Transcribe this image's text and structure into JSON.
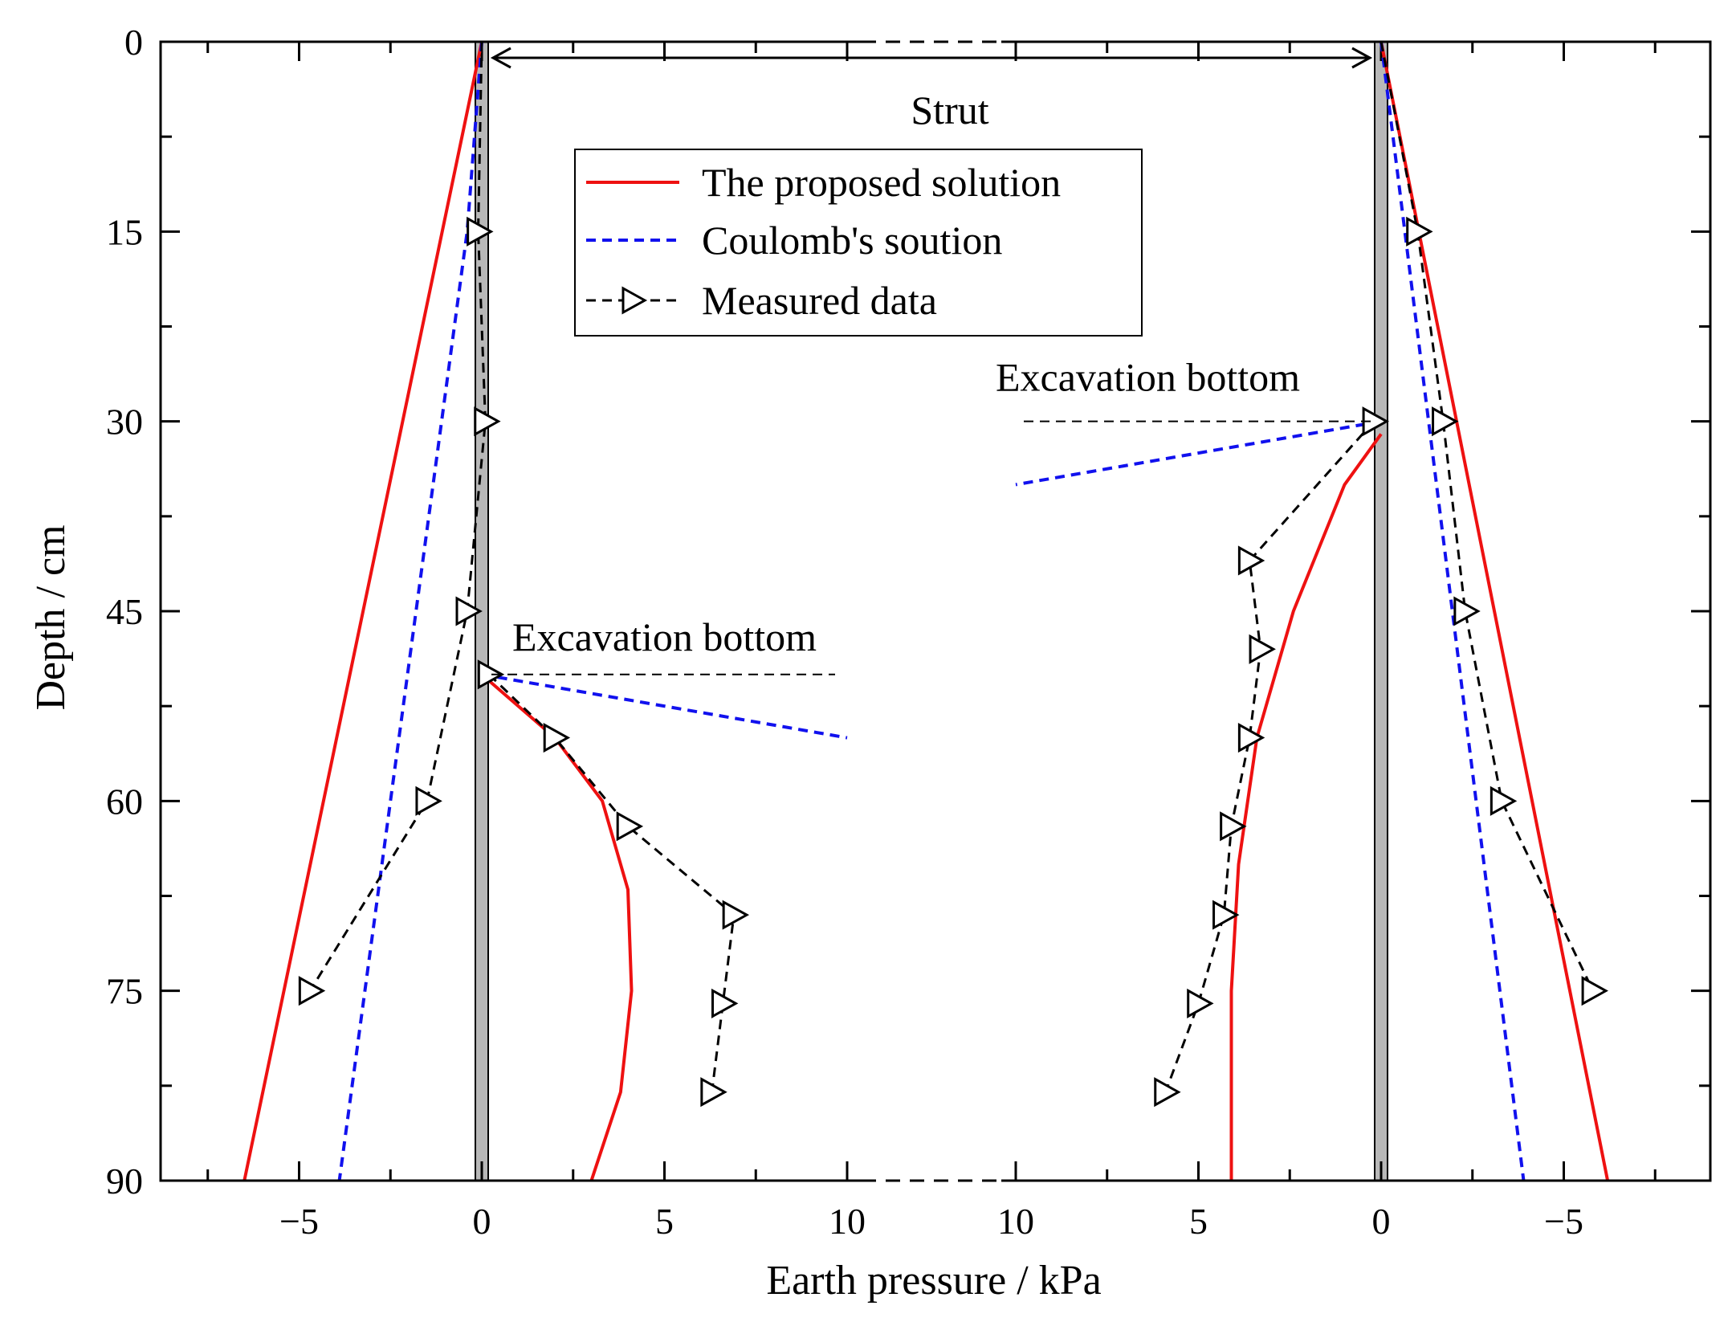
{
  "chart_data": {
    "type": "line",
    "xlabel": "Earth pressure / kPa",
    "ylabel": "Depth / cm",
    "y_ticks": [
      "0",
      "15",
      "30",
      "45",
      "60",
      "75",
      "90"
    ],
    "x_ticks_left": [
      "−5",
      "0",
      "5",
      "10"
    ],
    "x_ticks_right": [
      "10",
      "5",
      "0",
      "−5"
    ],
    "ylim": [
      0,
      90
    ],
    "annotations": {
      "strut": "Strut",
      "excavation_left": "Excavation bottom",
      "excavation_right": "Excavation bottom"
    },
    "legend": [
      {
        "name": "The proposed solution",
        "color": "#ee1111",
        "style": "solid"
      },
      {
        "name": "Coulomb's soution",
        "color": "#1111ee",
        "style": "dashed"
      },
      {
        "name": "Measured data",
        "color": "#000000",
        "style": "dashed-triangle"
      }
    ],
    "panels": [
      {
        "name": "left",
        "series": [
          {
            "name": "The proposed solution",
            "segment": "outer",
            "points": [
              [
                0,
                0
              ],
              [
                -6.5,
                90
              ]
            ]
          },
          {
            "name": "The proposed solution",
            "segment": "inner",
            "points": [
              [
                0,
                50
              ],
              [
                2.0,
                55
              ],
              [
                3.3,
                60
              ],
              [
                4.0,
                67
              ],
              [
                4.1,
                75
              ],
              [
                3.8,
                83
              ],
              [
                3.0,
                90
              ]
            ]
          },
          {
            "name": "Coulomb's soution",
            "segment": "outer",
            "points": [
              [
                0,
                0
              ],
              [
                -0.4,
                15
              ],
              [
                -3.9,
                90
              ]
            ]
          },
          {
            "name": "Coulomb's soution",
            "segment": "inner",
            "points": [
              [
                0,
                50
              ],
              [
                10,
                55
              ]
            ]
          },
          {
            "name": "Measured data",
            "segment": "outer",
            "points": [
              [
                0,
                0
              ],
              [
                -0.1,
                15
              ],
              [
                0.1,
                30
              ],
              [
                -0.4,
                45
              ],
              [
                -1.5,
                60
              ],
              [
                -4.7,
                75
              ]
            ]
          },
          {
            "name": "Measured data",
            "segment": "inner",
            "points": [
              [
                0.2,
                50
              ],
              [
                2.0,
                55
              ],
              [
                4.0,
                62
              ],
              [
                6.9,
                69
              ],
              [
                6.6,
                76
              ],
              [
                6.3,
                83
              ]
            ]
          }
        ],
        "excavation_bottom_depth": 50
      },
      {
        "name": "right",
        "series": [
          {
            "name": "The proposed solution",
            "segment": "outer",
            "points": [
              [
                0,
                0
              ],
              [
                -6.2,
                90
              ]
            ]
          },
          {
            "name": "The proposed solution",
            "segment": "inner",
            "points": [
              [
                0,
                31
              ],
              [
                1.0,
                35
              ],
              [
                2.4,
                45
              ],
              [
                3.4,
                55
              ],
              [
                3.9,
                65
              ],
              [
                4.1,
                75
              ],
              [
                4.1,
                90
              ]
            ]
          },
          {
            "name": "Coulomb's soution",
            "segment": "outer",
            "points": [
              [
                0,
                0
              ],
              [
                -3.9,
                90
              ]
            ]
          },
          {
            "name": "Coulomb's soution",
            "segment": "inner",
            "points": [
              [
                0,
                30
              ],
              [
                10,
                35
              ]
            ]
          },
          {
            "name": "Measured data",
            "segment": "outer",
            "points": [
              [
                0,
                0
              ],
              [
                -1.0,
                15
              ],
              [
                -1.7,
                30
              ],
              [
                -2.3,
                45
              ],
              [
                -3.3,
                60
              ],
              [
                -5.8,
                75
              ]
            ]
          },
          {
            "name": "Measured data",
            "segment": "inner",
            "points": [
              [
                0.2,
                30
              ],
              [
                3.6,
                41
              ],
              [
                3.3,
                48
              ],
              [
                3.6,
                55
              ],
              [
                4.1,
                62
              ],
              [
                4.3,
                69
              ],
              [
                5.0,
                76
              ],
              [
                5.9,
                83
              ]
            ]
          }
        ],
        "excavation_bottom_depth": 30
      }
    ]
  }
}
